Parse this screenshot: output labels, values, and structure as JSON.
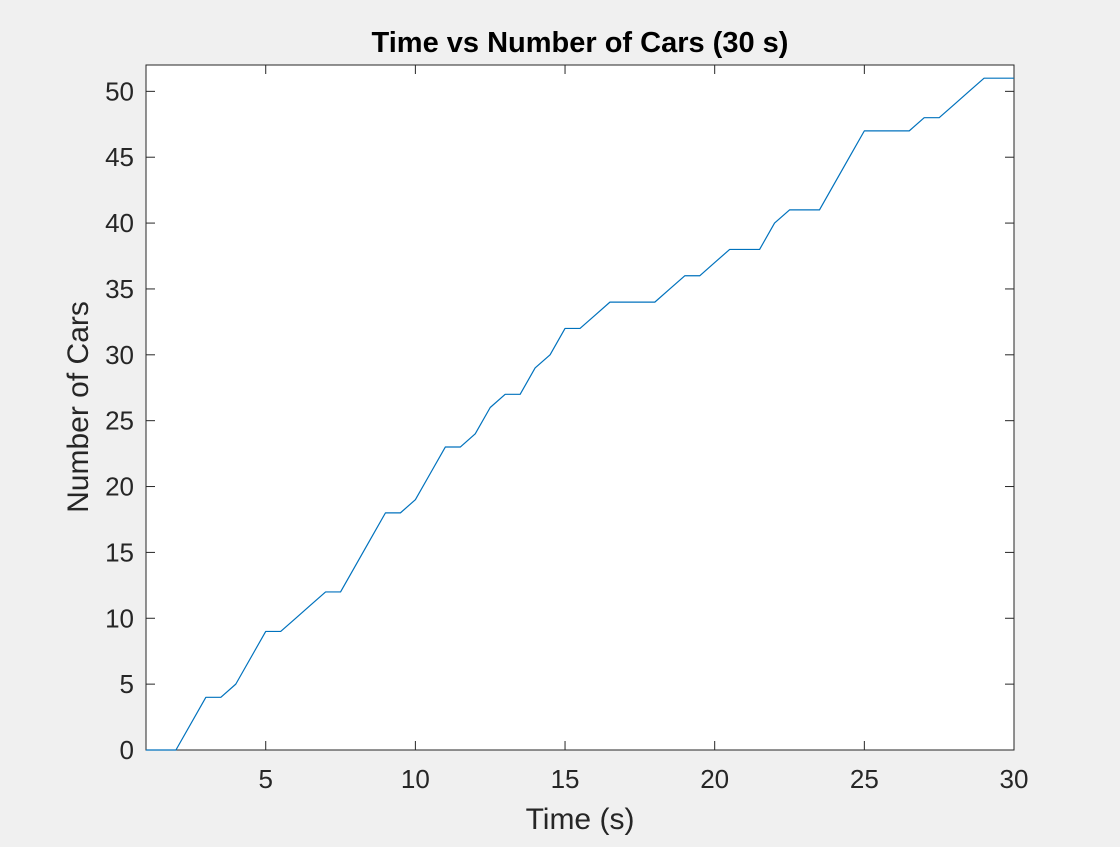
{
  "chart_data": {
    "type": "line",
    "title": "Time vs Number of Cars (30 s)",
    "xlabel": "Time (s)",
    "ylabel": "Number of Cars",
    "xlim": [
      1,
      30
    ],
    "ylim": [
      0,
      52
    ],
    "xticks": [
      5,
      10,
      15,
      20,
      25,
      30
    ],
    "yticks": [
      0,
      5,
      10,
      15,
      20,
      25,
      30,
      35,
      40,
      45,
      50
    ],
    "grid": false,
    "legend": "none",
    "series": [
      {
        "color": "#0072BD",
        "x": [
          1,
          2,
          3,
          3.5,
          4,
          5,
          5.5,
          6,
          6.5,
          7,
          7.5,
          8,
          8.5,
          9,
          9.5,
          10,
          10.5,
          11,
          11.5,
          12,
          12.5,
          13,
          13.5,
          14,
          14.5,
          15,
          15.5,
          16,
          16.5,
          17,
          17.5,
          18,
          18.5,
          19,
          19.5,
          20,
          20.5,
          21,
          21.5,
          22,
          22.5,
          23,
          23.5,
          24,
          24.5,
          25,
          25.5,
          26,
          26.5,
          27,
          27.5,
          28,
          28.5,
          29,
          29.5,
          30
        ],
        "y": [
          0,
          0,
          4,
          4,
          5,
          9,
          9,
          10,
          11,
          12,
          12,
          14,
          16,
          18,
          18,
          19,
          21,
          23,
          23,
          24,
          26,
          27,
          27,
          29,
          30,
          32,
          32,
          33,
          34,
          34,
          34,
          34,
          35,
          36,
          36,
          37,
          38,
          38,
          38,
          40,
          41,
          41,
          41,
          43,
          45,
          47,
          47,
          47,
          47,
          48,
          48,
          49,
          50,
          51,
          51,
          51
        ]
      }
    ]
  }
}
